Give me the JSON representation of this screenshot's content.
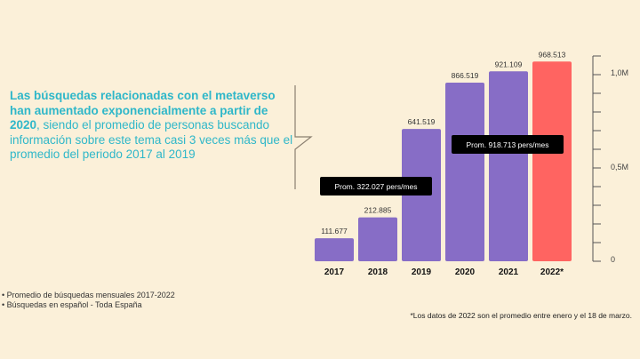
{
  "headline": {
    "bold": "Las búsquedas relacionadas con el metaverso han aumentado exponencialmente a partir de 2020",
    "rest": ", siendo el promedio de personas buscando información sobre este tema casi 3 veces más que el promedio del periodo 2017 al 2019"
  },
  "notes": [
    "• Promedio de búsquedas mensuales 2017-2022",
    "• Búsquedas en español - Toda España"
  ],
  "footnote": "*Los datos de 2022 son el promedio entre enero y el 18 de marzo.",
  "colors": {
    "bar": "#876dc6",
    "highlight": "#ff6461",
    "background": "#fbf0d9",
    "headline": "#2fb7c9"
  },
  "chart_data": {
    "type": "bar",
    "categories": [
      "2017",
      "2018",
      "2019",
      "2020",
      "2021",
      "2022*"
    ],
    "values": [
      111677,
      212885,
      641519,
      866519,
      921109,
      968513
    ],
    "value_labels": [
      "111.677",
      "212.885",
      "641.519",
      "866.519",
      "921.109",
      "968.513"
    ],
    "highlight_index": 5,
    "ylim": [
      0,
      1000000
    ],
    "yticks": [
      {
        "value": 0,
        "label": "0"
      },
      {
        "value": 500000,
        "label": "0,5M"
      },
      {
        "value": 1000000,
        "label": "1,0M"
      }
    ],
    "axis_position": "right",
    "annotations": [
      {
        "label": "Prom. 322.027 pers/mes",
        "value": 322027,
        "span": [
          "2017",
          "2019"
        ]
      },
      {
        "label": "Prom. 918.713 pers/mes",
        "value": 918713,
        "span": [
          "2020",
          "2022*"
        ]
      }
    ],
    "title": "",
    "xlabel": "",
    "ylabel": ""
  }
}
